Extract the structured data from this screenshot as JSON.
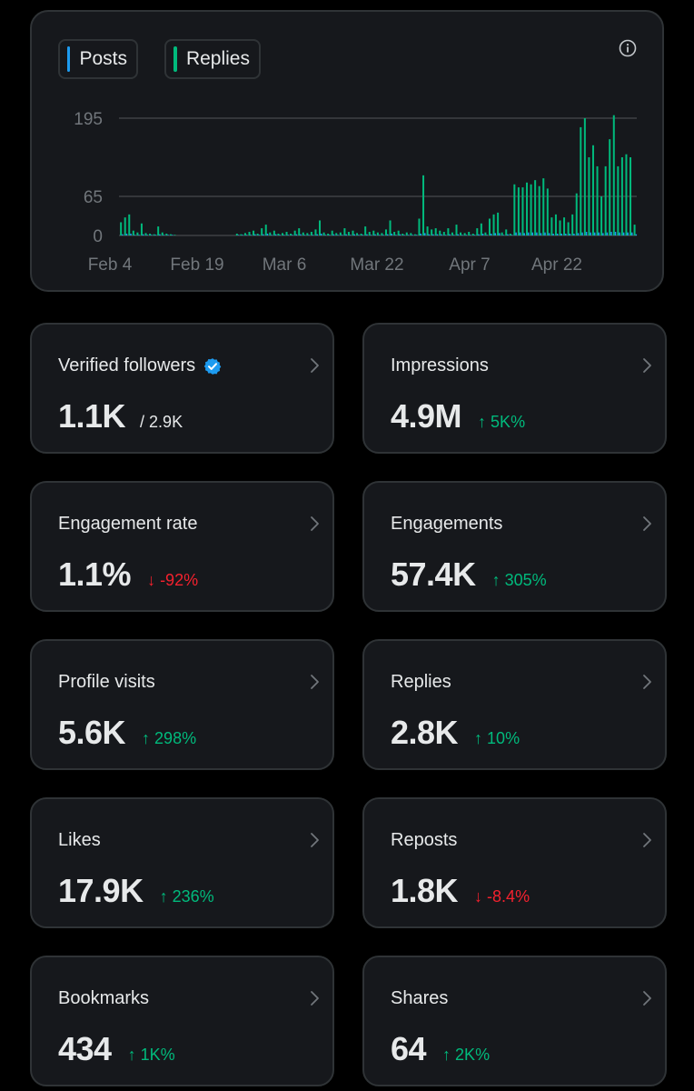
{
  "legend": {
    "posts_label": "Posts",
    "replies_label": "Replies",
    "posts_color": "#1d9bf0",
    "replies_color": "#00ba7c"
  },
  "chart_data": {
    "type": "bar",
    "y_ticks": [
      "195",
      "65",
      "0"
    ],
    "y_tick_values": [
      195,
      65,
      0
    ],
    "ylim": [
      0,
      195
    ],
    "x_ticks": [
      "Feb 4",
      "Feb 19",
      "Mar 6",
      "Mar 22",
      "Apr 7",
      "Apr 22"
    ],
    "grid": true,
    "series": [
      {
        "name": "Replies",
        "color": "#00ba7c",
        "values": [
          22,
          30,
          35,
          8,
          5,
          20,
          4,
          3,
          2,
          15,
          5,
          3,
          2,
          1,
          0,
          0,
          0,
          0,
          0,
          0,
          0,
          0,
          0,
          0,
          0,
          0,
          0,
          0,
          3,
          2,
          4,
          6,
          8,
          3,
          12,
          18,
          5,
          8,
          3,
          4,
          6,
          3,
          8,
          12,
          5,
          4,
          6,
          10,
          25,
          5,
          3,
          8,
          4,
          5,
          12,
          6,
          8,
          4,
          3,
          15,
          6,
          8,
          5,
          4,
          10,
          25,
          6,
          8,
          3,
          5,
          4,
          2,
          28,
          100,
          15,
          10,
          12,
          8,
          6,
          12,
          5,
          18,
          5,
          4,
          6,
          3,
          12,
          20,
          5,
          28,
          35,
          38,
          5,
          10,
          3,
          85,
          80,
          80,
          88,
          85,
          92,
          82,
          95,
          78,
          30,
          35,
          25,
          30,
          22,
          35,
          70,
          180,
          195,
          130,
          150,
          115,
          65,
          115,
          160,
          200,
          115,
          130,
          135,
          130,
          18
        ],
        "value_note": ""
      },
      {
        "name": "Posts",
        "color": "#1d9bf0",
        "values": [
          2,
          3,
          3,
          1,
          1,
          2,
          1,
          1,
          1,
          2,
          1,
          1,
          1,
          0,
          0,
          0,
          0,
          0,
          0,
          0,
          0,
          0,
          0,
          0,
          0,
          0,
          0,
          0,
          1,
          1,
          1,
          1,
          2,
          1,
          2,
          3,
          1,
          2,
          1,
          1,
          1,
          1,
          2,
          2,
          1,
          1,
          1,
          2,
          3,
          1,
          1,
          2,
          1,
          1,
          2,
          1,
          2,
          1,
          1,
          2,
          1,
          2,
          1,
          1,
          2,
          3,
          1,
          2,
          1,
          1,
          1,
          1,
          3,
          4,
          2,
          2,
          2,
          2,
          1,
          2,
          1,
          2,
          1,
          1,
          1,
          1,
          2,
          3,
          1,
          3,
          4,
          4,
          1,
          2,
          1,
          5,
          5,
          4,
          5,
          5,
          5,
          4,
          5,
          4,
          3,
          3,
          3,
          3,
          3,
          3,
          4,
          5,
          6,
          5,
          5,
          5,
          4,
          5,
          6,
          6,
          5,
          5,
          5,
          5,
          2
        ]
      }
    ]
  },
  "stats": [
    {
      "label": "Verified followers",
      "value": "1.1K",
      "delta": "/ 2.9K",
      "direction": "neutral",
      "verified": true
    },
    {
      "label": "Impressions",
      "value": "4.9M",
      "delta": "↑ 5K%",
      "direction": "up"
    },
    {
      "label": "Engagement rate",
      "value": "1.1%",
      "delta": "↓ -92%",
      "direction": "down"
    },
    {
      "label": "Engagements",
      "value": "57.4K",
      "delta": "↑ 305%",
      "direction": "up"
    },
    {
      "label": "Profile visits",
      "value": "5.6K",
      "delta": "↑ 298%",
      "direction": "up"
    },
    {
      "label": "Replies",
      "value": "2.8K",
      "delta": "↑ 10%",
      "direction": "up"
    },
    {
      "label": "Likes",
      "value": "17.9K",
      "delta": "↑ 236%",
      "direction": "up"
    },
    {
      "label": "Reposts",
      "value": "1.8K",
      "delta": "↓ -8.4%",
      "direction": "down"
    },
    {
      "label": "Bookmarks",
      "value": "434",
      "delta": "↑ 1K%",
      "direction": "up"
    },
    {
      "label": "Shares",
      "value": "64",
      "delta": "↑ 2K%",
      "direction": "up"
    }
  ]
}
